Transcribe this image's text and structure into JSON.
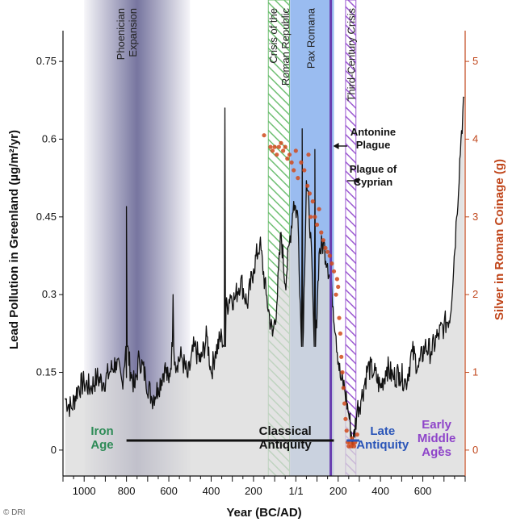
{
  "chart_data": {
    "type": "line",
    "xlabel": "Year (BC/AD)",
    "ylabel": "Lead Pollution in Greenland (µg/m²/yr)",
    "y2label": "Silver in Roman Coinage (g)",
    "xlim": [
      -1100,
      800
    ],
    "ylim": [
      -0.05,
      0.8
    ],
    "y2lim": [
      -0.3333,
      5.3333
    ],
    "x_ticks": [
      {
        "value": -1000,
        "label": "1000"
      },
      {
        "value": -800,
        "label": "800"
      },
      {
        "value": -600,
        "label": "600"
      },
      {
        "value": -400,
        "label": "400"
      },
      {
        "value": -200,
        "label": "200"
      },
      {
        "value": 1,
        "label": "1/1"
      },
      {
        "value": 200,
        "label": "200"
      },
      {
        "value": 400,
        "label": "400"
      },
      {
        "value": 600,
        "label": "600"
      }
    ],
    "y_ticks": [
      {
        "value": 0,
        "label": "0"
      },
      {
        "value": 0.15,
        "label": "0.15"
      },
      {
        "value": 0.3,
        "label": "0.3"
      },
      {
        "value": 0.45,
        "label": "0.45"
      },
      {
        "value": 0.6,
        "label": "0.6"
      },
      {
        "value": 0.75,
        "label": "0.75"
      }
    ],
    "y2_ticks": [
      {
        "value": 0,
        "label": "0"
      },
      {
        "value": 1,
        "label": "1"
      },
      {
        "value": 2,
        "label": "2"
      },
      {
        "value": 3,
        "label": "3"
      },
      {
        "value": 4,
        "label": "4"
      },
      {
        "value": 5,
        "label": "5"
      }
    ],
    "bands": [
      {
        "label": "Phoenician Expansion",
        "label_lines": [
          "Phoenician",
          "Expansion"
        ],
        "x0": -1000,
        "x1": -500,
        "style": "gradient",
        "color": "#4a4880"
      },
      {
        "label": "Crisis of the Roman Republic",
        "label_lines": [
          "Crisis of the",
          "Roman Republic"
        ],
        "x0": -130,
        "x1": -30,
        "style": "hatch",
        "color": "#6fbf73"
      },
      {
        "label": "Pax Romana",
        "label_lines": [
          "Pax Romana"
        ],
        "x0": -27,
        "x1": 180,
        "style": "solid",
        "color": "#8fb5ee"
      },
      {
        "label": "Third-Century Crisis",
        "label_lines": [
          "Third-Century Crisis"
        ],
        "x0": 235,
        "x1": 284,
        "style": "hatch",
        "color": "#9b59d0"
      }
    ],
    "events": [
      {
        "label": "Antonine Plague",
        "label_lines": [
          "Antonine",
          "Plague"
        ],
        "x": 165
      },
      {
        "label": "Plague of Cyprian",
        "label_lines": [
          "Plague of",
          "Cyprian"
        ],
        "x": 250
      }
    ],
    "eras": [
      {
        "label_lines": [
          "Iron",
          "Age"
        ],
        "color": "#2e8b57",
        "x": -915,
        "line": null
      },
      {
        "label_lines": [
          "Classical",
          "Antiquity"
        ],
        "color": "#111111",
        "x": -50,
        "line": [
          -800,
          180
        ]
      },
      {
        "label_lines": [
          "Late",
          "Antiquity"
        ],
        "color": "#2a55b8",
        "x": 410,
        "line": [
          240,
          300
        ]
      },
      {
        "label_lines": [
          "Early",
          "Middle",
          "Ages"
        ],
        "color": "#8e44c9",
        "x": 665,
        "line": [
          675,
          690
        ]
      }
    ],
    "series": [
      {
        "name": "Lead Pollution in Greenland",
        "axis": "left",
        "x": [
          -1090,
          -1060,
          -1030,
          -1000,
          -970,
          -940,
          -910,
          -880,
          -850,
          -820,
          -800,
          -780,
          -760,
          -740,
          -710,
          -680,
          -650,
          -620,
          -600,
          -570,
          -540,
          -510,
          -480,
          -450,
          -420,
          -400,
          -380,
          -350,
          -330,
          -310,
          -290,
          -260,
          -230,
          -200,
          -170,
          -140,
          -110,
          -90,
          -70,
          -50,
          -30,
          -10,
          10,
          30,
          50,
          70,
          90,
          110,
          130,
          150,
          170,
          190,
          210,
          230,
          250,
          270,
          290,
          310,
          340,
          370,
          400,
          430,
          460,
          490,
          520,
          550,
          580,
          610,
          640,
          670,
          700,
          730,
          760,
          780,
          795
        ],
        "values": [
          0.1,
          0.08,
          0.12,
          0.13,
          0.12,
          0.14,
          0.13,
          0.15,
          0.17,
          0.13,
          0.14,
          0.15,
          0.12,
          0.18,
          0.14,
          0.1,
          0.12,
          0.16,
          0.13,
          0.17,
          0.18,
          0.14,
          0.2,
          0.17,
          0.22,
          0.15,
          0.19,
          0.22,
          0.27,
          0.3,
          0.29,
          0.33,
          0.28,
          0.35,
          0.4,
          0.3,
          0.22,
          0.28,
          0.42,
          0.32,
          0.4,
          0.48,
          0.45,
          0.5,
          0.52,
          0.42,
          0.48,
          0.38,
          0.4,
          0.36,
          0.31,
          0.22,
          0.14,
          0.12,
          0.07,
          0.01,
          0.08,
          0.1,
          0.16,
          0.15,
          0.12,
          0.16,
          0.14,
          0.15,
          0.13,
          0.19,
          0.16,
          0.2,
          0.19,
          0.22,
          0.24,
          0.26,
          0.45,
          0.6,
          0.68
        ],
        "spikes": [
          {
            "x": -800,
            "value": 0.47
          },
          {
            "x": -580,
            "value": 0.3
          },
          {
            "x": -335,
            "value": 0.66
          },
          {
            "x": 30,
            "value": 0.62
          },
          {
            "x": 90,
            "value": 0.58
          }
        ]
      },
      {
        "name": "Silver in Roman Coinage",
        "axis": "right",
        "type": "scatter",
        "points": [
          {
            "x": -120,
            "y": 3.9
          },
          {
            "x": -110,
            "y": 3.85
          },
          {
            "x": -100,
            "y": 3.9
          },
          {
            "x": -90,
            "y": 3.8
          },
          {
            "x": -80,
            "y": 3.9
          },
          {
            "x": -70,
            "y": 3.95
          },
          {
            "x": -60,
            "y": 3.85
          },
          {
            "x": -50,
            "y": 3.9
          },
          {
            "x": -40,
            "y": 3.75
          },
          {
            "x": -30,
            "y": 3.8
          },
          {
            "x": -20,
            "y": 3.7
          },
          {
            "x": -150,
            "y": 4.05
          },
          {
            "x": -10,
            "y": 3.6
          },
          {
            "x": 0,
            "y": 3.85
          },
          {
            "x": 10,
            "y": 3.5
          },
          {
            "x": 25,
            "y": 3.7
          },
          {
            "x": 40,
            "y": 3.6
          },
          {
            "x": 55,
            "y": 3.4
          },
          {
            "x": 60,
            "y": 3.8
          },
          {
            "x": 65,
            "y": 3.3
          },
          {
            "x": 70,
            "y": 3.0
          },
          {
            "x": 80,
            "y": 3.2
          },
          {
            "x": 90,
            "y": 3.0
          },
          {
            "x": 100,
            "y": 2.9
          },
          {
            "x": 110,
            "y": 3.1
          },
          {
            "x": 120,
            "y": 2.8
          },
          {
            "x": 130,
            "y": 2.7
          },
          {
            "x": 140,
            "y": 2.6
          },
          {
            "x": 150,
            "y": 2.55
          },
          {
            "x": 160,
            "y": 2.5
          },
          {
            "x": 170,
            "y": 2.4
          },
          {
            "x": 180,
            "y": 2.3
          },
          {
            "x": 190,
            "y": 2.0
          },
          {
            "x": 195,
            "y": 2.2
          },
          {
            "x": 200,
            "y": 2.1
          },
          {
            "x": 205,
            "y": 1.7
          },
          {
            "x": 210,
            "y": 1.5
          },
          {
            "x": 215,
            "y": 1.2
          },
          {
            "x": 220,
            "y": 1.0
          },
          {
            "x": 225,
            "y": 0.8
          },
          {
            "x": 230,
            "y": 0.6
          },
          {
            "x": 235,
            "y": 0.4
          },
          {
            "x": 240,
            "y": 0.25
          },
          {
            "x": 245,
            "y": 0.1
          },
          {
            "x": 250,
            "y": 0.05
          },
          {
            "x": 255,
            "y": 0.1
          },
          {
            "x": 260,
            "y": 0.05
          },
          {
            "x": 265,
            "y": 0.15
          },
          {
            "x": 270,
            "y": 0.08
          },
          {
            "x": 275,
            "y": 0.05
          },
          {
            "x": 280,
            "y": 0.1
          },
          {
            "x": 290,
            "y": 0.2
          }
        ]
      }
    ]
  },
  "credit": "© DRI"
}
